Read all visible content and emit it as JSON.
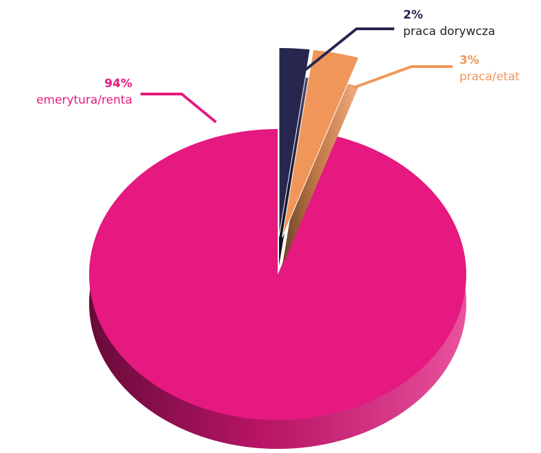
{
  "chart_data": {
    "type": "pie",
    "categories": [
      "praca dorywcza",
      "praca/etat",
      "emerytura/renta"
    ],
    "values": [
      2,
      3,
      94
    ],
    "value_labels": [
      "2%",
      "3%",
      "94%"
    ],
    "colors": [
      "#26264f",
      "#f0965a",
      "#e5197f"
    ]
  }
}
